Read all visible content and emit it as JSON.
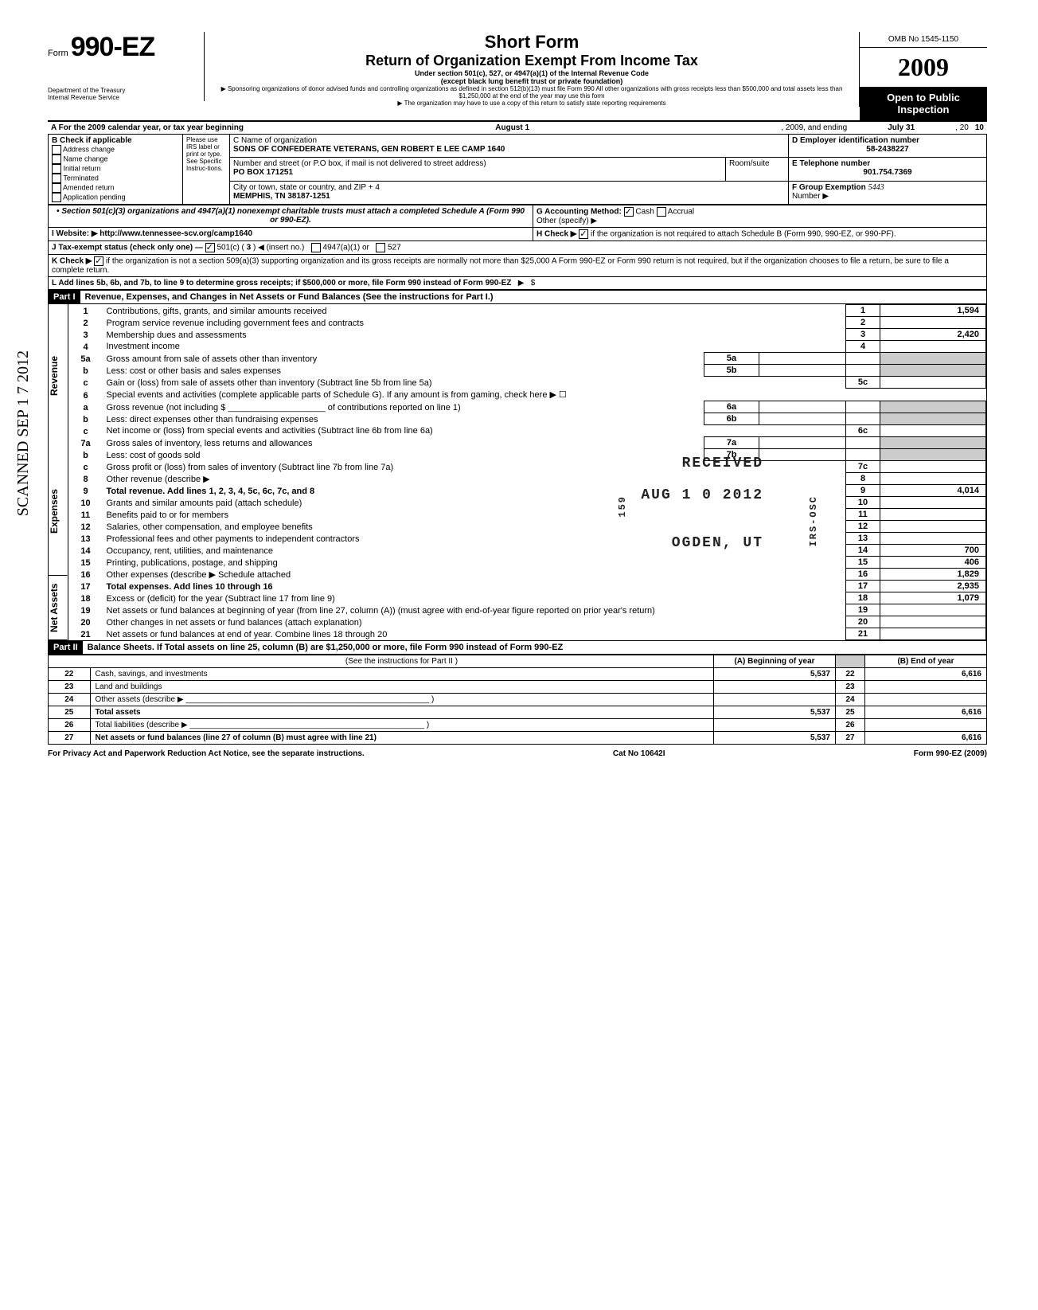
{
  "header": {
    "form_prefix": "Form",
    "form_no": "990-EZ",
    "dept1": "Department of the Treasury",
    "dept2": "Internal Revenue Service",
    "title1": "Short Form",
    "title2": "Return of Organization Exempt From Income Tax",
    "sub1": "Under section 501(c), 527, or 4947(a)(1) of the Internal Revenue Code",
    "sub2": "(except black lung benefit trust or private foundation)",
    "sub3": "▶ Sponsoring organizations of donor advised funds and controlling organizations as defined in section 512(b)(13) must file Form 990  All other organizations with gross receipts less than $500,000 and total assets less than $1,250,000 at the end of the year may use this form",
    "sub4": "▶ The organization may have to use a copy of this return to satisfy state reporting requirements",
    "omb": "OMB No 1545-1150",
    "year_prefix": "20",
    "year_bold": "09",
    "open": "Open to Public Inspection"
  },
  "lineA": {
    "text": "A  For the 2009 calendar year, or tax year beginning",
    "begin": "August 1",
    "mid": ", 2009, and ending",
    "end": "July 31",
    "yr": ", 20",
    "yy": "10"
  },
  "boxB": {
    "label": "B  Check if applicable",
    "items": [
      "Address change",
      "Name change",
      "Initial return",
      "Terminated",
      "Amended return",
      "Application pending"
    ],
    "please": "Please use IRS label or print or type. See Specific Instruc-tions."
  },
  "boxC": {
    "label": "C Name of organization",
    "name": "SONS OF CONFEDERATE VETERANS, GEN ROBERT E LEE CAMP 1640",
    "street_label": "Number and street (or P.O box, if mail is not delivered to street address)",
    "street": "PO BOX 171251",
    "room_label": "Room/suite",
    "city_label": "City or town, state or country, and ZIP + 4",
    "city": "MEMPHIS, TN 38187-1251"
  },
  "boxD": {
    "label": "D Employer identification number",
    "value": "58-2438227"
  },
  "boxE": {
    "label": "E Telephone number",
    "value": "901.754.7369"
  },
  "boxF": {
    "label": "F Group Exemption",
    "number_label": "Number ▶",
    "value": "5443"
  },
  "boxG": {
    "label": "G  Accounting Method:",
    "cash": "Cash",
    "accrual": "Accrual",
    "other": "Other (specify) ▶"
  },
  "sec501": "• Section 501(c)(3) organizations and 4947(a)(1) nonexempt charitable trusts must attach a completed Schedule A (Form 990 or 990-EZ).",
  "boxH": {
    "label": "H  Check ▶",
    "text": "if the organization is not required to attach Schedule B (Form 990, 990-EZ, or 990-PF)."
  },
  "boxI": {
    "label": "I   Website: ▶",
    "value": "http://www.tennessee-scv.org/camp1640"
  },
  "boxJ": {
    "label": "J  Tax-exempt status (check only one) —",
    "c1": "501(c) (",
    "c1n": "3",
    "c1e": ")  ◀ (insert no.)",
    "c2": "4947(a)(1) or",
    "c3": "527"
  },
  "boxK": {
    "label": "K  Check ▶",
    "text": "if the organization is not a section 509(a)(3) supporting organization and its gross receipts are normally not more than $25,000   A Form 990-EZ or Form 990 return is not required,  but if the organization chooses to file a return, be sure to file a complete return."
  },
  "boxL": {
    "text": "L  Add lines 5b, 6b, and 7b, to line 9 to determine gross receipts; if $500,000 or more, file Form 990 instead of Form 990-EZ",
    "arrow": "▶",
    "amt_label": "$"
  },
  "partI": {
    "bar": "Part I",
    "title": "Revenue, Expenses, and Changes in Net Assets or Fund Balances (See the instructions for Part I.)"
  },
  "lines": {
    "l1": {
      "n": "1",
      "d": "Contributions, gifts, grants, and similar amounts received",
      "b": "1",
      "a": "1,594"
    },
    "l2": {
      "n": "2",
      "d": "Program service revenue including government fees and contracts",
      "b": "2",
      "a": ""
    },
    "l3": {
      "n": "3",
      "d": "Membership dues and assessments",
      "b": "3",
      "a": "2,420"
    },
    "l4": {
      "n": "4",
      "d": "Investment income",
      "b": "4",
      "a": ""
    },
    "l5a": {
      "n": "5a",
      "d": "Gross amount from sale of assets other than inventory",
      "sb": "5a"
    },
    "l5b": {
      "n": "b",
      "d": "Less: cost or other basis and sales expenses",
      "sb": "5b"
    },
    "l5c": {
      "n": "c",
      "d": "Gain or (loss) from sale of assets other than inventory (Subtract line 5b from line 5a)",
      "b": "5c",
      "a": ""
    },
    "l6": {
      "n": "6",
      "d": "Special events and activities (complete applicable parts of Schedule G). If any amount is from gaming, check here ▶ ☐"
    },
    "l6a": {
      "n": "a",
      "d": "Gross revenue (not including $ ____________________ of contributions reported on line 1)",
      "sb": "6a"
    },
    "l6b": {
      "n": "b",
      "d": "Less: direct expenses other than fundraising expenses",
      "sb": "6b"
    },
    "l6c": {
      "n": "c",
      "d": "Net income or (loss) from special events and activities (Subtract line 6b from line 6a)",
      "b": "6c",
      "a": ""
    },
    "l7a": {
      "n": "7a",
      "d": "Gross sales of inventory, less returns and allowances",
      "sb": "7a"
    },
    "l7b": {
      "n": "b",
      "d": "Less: cost of goods sold",
      "sb": "7b"
    },
    "l7c": {
      "n": "c",
      "d": "Gross profit or (loss) from sales of inventory (Subtract line 7b from line 7a)",
      "b": "7c",
      "a": ""
    },
    "l8": {
      "n": "8",
      "d": "Other revenue (describe ▶",
      "b": "8",
      "a": ""
    },
    "l9": {
      "n": "9",
      "d": "Total revenue. Add lines 1, 2, 3, 4, 5c, 6c, 7c, and 8",
      "b": "9",
      "a": "4,014",
      "bold": true
    },
    "l10": {
      "n": "10",
      "d": "Grants and similar amounts paid (attach schedule)",
      "b": "10",
      "a": ""
    },
    "l11": {
      "n": "11",
      "d": "Benefits paid to or for members",
      "b": "11",
      "a": ""
    },
    "l12": {
      "n": "12",
      "d": "Salaries, other compensation, and employee benefits",
      "b": "12",
      "a": ""
    },
    "l13": {
      "n": "13",
      "d": "Professional fees and other payments to independent contractors",
      "b": "13",
      "a": ""
    },
    "l14": {
      "n": "14",
      "d": "Occupancy, rent, utilities, and maintenance",
      "b": "14",
      "a": "700"
    },
    "l15": {
      "n": "15",
      "d": "Printing, publications, postage, and shipping",
      "b": "15",
      "a": "406"
    },
    "l16": {
      "n": "16",
      "d": "Other expenses (describe ▶   Schedule attached",
      "b": "16",
      "a": "1,829"
    },
    "l17": {
      "n": "17",
      "d": "Total expenses. Add lines 10 through 16",
      "b": "17",
      "a": "2,935",
      "bold": true
    },
    "l18": {
      "n": "18",
      "d": "Excess or (deficit) for the year (Subtract line 17 from line 9)",
      "b": "18",
      "a": "1,079"
    },
    "l19": {
      "n": "19",
      "d": "Net assets or fund balances at beginning of year (from line 27, column (A)) (must agree with end-of-year figure reported on prior year's return)",
      "b": "19",
      "a": ""
    },
    "l20": {
      "n": "20",
      "d": "Other changes in net assets or fund balances (attach explanation)",
      "b": "20",
      "a": ""
    },
    "l21": {
      "n": "21",
      "d": "Net assets or fund balances at end of year. Combine lines 18 through 20",
      "b": "21",
      "a": ""
    }
  },
  "vlabels": {
    "rev": "Revenue",
    "exp": "Expenses",
    "na": "Net Assets"
  },
  "partII": {
    "bar": "Part II",
    "title": "Balance Sheets. If Total assets on line 25, column (B) are $1,250,000 or more, file Form 990 instead of Form 990-EZ",
    "instr": "(See the instructions for Part II )",
    "colA": "(A) Beginning of year",
    "colB": "(B) End of year",
    "rows": [
      {
        "n": "22",
        "d": "Cash, savings, and investments",
        "a": "5,537",
        "bn": "22",
        "b": "6,616"
      },
      {
        "n": "23",
        "d": "Land and buildings",
        "a": "",
        "bn": "23",
        "b": ""
      },
      {
        "n": "24",
        "d": "Other assets (describe ▶ _______________________________________________________ )",
        "a": "",
        "bn": "24",
        "b": ""
      },
      {
        "n": "25",
        "d": "Total assets",
        "a": "5,537",
        "bn": "25",
        "b": "6,616",
        "bold": true
      },
      {
        "n": "26",
        "d": "Total liabilities (describe ▶ _____________________________________________________ )",
        "a": "",
        "bn": "26",
        "b": ""
      },
      {
        "n": "27",
        "d": "Net assets or fund balances (line 27 of column (B) must agree with line 21)",
        "a": "5,537",
        "bn": "27",
        "b": "6,616",
        "bold": true
      }
    ]
  },
  "footer": {
    "left": "For Privacy Act and Paperwork Reduction Act Notice, see the separate instructions.",
    "mid": "Cat  No  10642I",
    "right": "Form 990-EZ (2009)"
  },
  "stamps": {
    "received": "RECEIVED",
    "date": "AUG 1 0 2012",
    "ogden": "OGDEN, UT",
    "irs": "IRS-OSC",
    "num": "159",
    "scanned": "SCANNED SEP 1 7 2012"
  },
  "style": {
    "bg": "#ffffff",
    "fg": "#000000",
    "bar_bg": "#000000",
    "bar_fg": "#ffffff",
    "gray": "#cccccc",
    "font_body_pt": 11,
    "font_small_pt": 9,
    "font_title_pt": 22
  }
}
